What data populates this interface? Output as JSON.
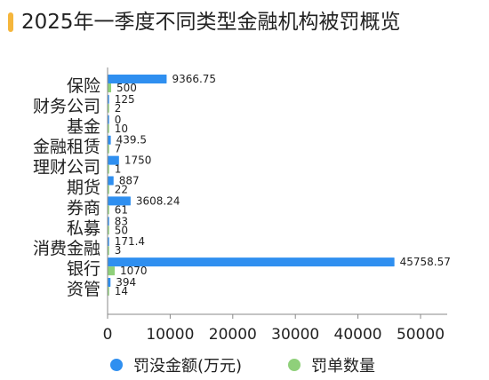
{
  "title": "2025年一季度不同类型金融机构被罚概览",
  "colors": {
    "accent": "#f5b63c",
    "amount": "#2f8ff0",
    "count": "#8fd07a"
  },
  "legend": {
    "amount": "罚没金额(万元)",
    "count": "罚单数量"
  },
  "chart_data": {
    "type": "bar",
    "orientation": "horizontal",
    "categories": [
      "保险",
      "财务公司",
      "基金",
      "金融租赁",
      "理财公司",
      "期货",
      "券商",
      "私募",
      "消费金融",
      "银行",
      "资管"
    ],
    "series": [
      {
        "name": "罚没金额(万元)",
        "values": [
          9366.75,
          125,
          0,
          439.5,
          1750,
          887,
          3608.24,
          83,
          171.4,
          45758.57,
          394
        ],
        "labels": [
          "9366.75",
          "125",
          "0",
          "439.5",
          "1750",
          "887",
          "3608.24",
          "83",
          "171.4",
          "45758.57",
          "394"
        ]
      },
      {
        "name": "罚单数量",
        "values": [
          500,
          2,
          10,
          7,
          1,
          22,
          61,
          50,
          3,
          1070,
          14
        ],
        "labels": [
          "500",
          "2",
          "10",
          "7",
          "1",
          "22",
          "61",
          "50",
          "3",
          "1070",
          "14"
        ]
      }
    ],
    "xlim": [
      0,
      50000
    ],
    "xticks": [
      "0",
      "10000",
      "20000",
      "30000",
      "40000",
      "50000"
    ],
    "grid": false,
    "legend_position": "bottom"
  }
}
